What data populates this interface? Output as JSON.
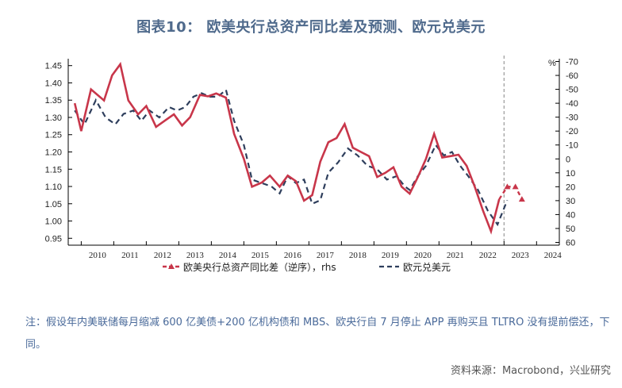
{
  "title": "图表10： 欧美央行总资产同比差及预测、欧元兑美元",
  "note": "注：假设年内美联储每月缩减 600 亿美债+200 亿机构债和 MBS、欧央行自 7 月停止 APP 再购买且 TLTRO 没有提前偿还，下同。",
  "source": "资料来源：Macrobond，兴业研究",
  "colors": {
    "red": "#c8364a",
    "blue": "#2e3e5c",
    "vline": "#999999"
  },
  "chart_data": {
    "type": "line",
    "x_ticks": [
      "2010",
      "2011",
      "2012",
      "2013",
      "2014",
      "2015",
      "2016",
      "2017",
      "2018",
      "2019",
      "2020",
      "2021",
      "2022",
      "2023",
      "2024"
    ],
    "y_left": {
      "ticks": [
        "1.45",
        "1.40",
        "1.35",
        "1.30",
        "1.25",
        "1.20",
        "1.15",
        "1.10",
        "1.05",
        "1.00",
        "0.95"
      ],
      "min": 0.93,
      "max": 1.47
    },
    "y_right": {
      "label": "%",
      "ticks": [
        "-70",
        "-60",
        "-50",
        "-40",
        "-30",
        "-20",
        "-10",
        "0",
        "10",
        "20",
        "30",
        "40",
        "50",
        "60"
      ],
      "min": -72,
      "max": 62,
      "reversed": true
    },
    "forecast_marker_year": 2023,
    "legend": [
      "欧美央行总资产同比差（逆序），rhs",
      "欧元兑美元"
    ],
    "series": [
      {
        "name": "欧美央行总资产同比差（逆序），rhs",
        "axis": "right",
        "x": [
          2009.8,
          2010.0,
          2010.3,
          2010.7,
          2010.95,
          2011.2,
          2011.45,
          2011.75,
          2012.0,
          2012.3,
          2012.6,
          2012.85,
          2013.1,
          2013.35,
          2013.65,
          2013.9,
          2014.15,
          2014.45,
          2014.7,
          2015.0,
          2015.25,
          2015.55,
          2015.8,
          2016.1,
          2016.35,
          2016.6,
          2016.85,
          2017.1,
          2017.35,
          2017.6,
          2017.85,
          2018.1,
          2018.35,
          2018.6,
          2018.85,
          2019.1,
          2019.35,
          2019.6,
          2019.85,
          2020.1,
          2020.35,
          2020.6,
          2020.85,
          2021.1,
          2021.35,
          2021.6,
          2021.85,
          2022.1,
          2022.35,
          2022.6,
          2022.85
        ],
        "y": [
          -40,
          -20,
          -50,
          -42,
          -60,
          -68,
          -42,
          -32,
          -38,
          -23,
          -28,
          -32,
          -24,
          -30,
          -46,
          -45,
          -47,
          -44,
          -18,
          0,
          20,
          17,
          12,
          20,
          12,
          16,
          30,
          26,
          2,
          -12,
          -15,
          -25,
          -8,
          -5,
          -2,
          13,
          10,
          6,
          20,
          25,
          13,
          0,
          -18,
          -1,
          -2,
          -3,
          5,
          20,
          37,
          52,
          29
        ]
      },
      {
        "name": "欧元兑美元",
        "axis": "left",
        "x": [
          2009.8,
          2010.1,
          2010.45,
          2010.75,
          2011.05,
          2011.3,
          2011.6,
          2011.85,
          2012.1,
          2012.4,
          2012.7,
          2012.95,
          2013.2,
          2013.45,
          2013.7,
          2013.95,
          2014.2,
          2014.45,
          2014.7,
          2015.0,
          2015.25,
          2015.55,
          2015.85,
          2016.1,
          2016.35,
          2016.6,
          2016.85,
          2017.1,
          2017.35,
          2017.6,
          2017.9,
          2018.2,
          2018.5,
          2018.8,
          2019.1,
          2019.4,
          2019.7,
          2019.95,
          2020.1,
          2020.35,
          2020.6,
          2020.9,
          2021.15,
          2021.4,
          2021.65,
          2021.9,
          2022.2,
          2022.5,
          2022.8,
          2023.1
        ],
        "y": [
          1.32,
          1.28,
          1.35,
          1.3,
          1.28,
          1.31,
          1.32,
          1.29,
          1.32,
          1.3,
          1.33,
          1.32,
          1.33,
          1.36,
          1.37,
          1.36,
          1.36,
          1.38,
          1.29,
          1.22,
          1.12,
          1.11,
          1.1,
          1.08,
          1.13,
          1.11,
          1.12,
          1.05,
          1.06,
          1.14,
          1.17,
          1.21,
          1.19,
          1.16,
          1.15,
          1.12,
          1.13,
          1.1,
          1.09,
          1.13,
          1.16,
          1.22,
          1.19,
          1.2,
          1.16,
          1.13,
          1.09,
          1.03,
          0.99,
          1.06
        ]
      },
      {
        "name": "预测",
        "axis": "right",
        "x": [
          2022.85,
          2023.1,
          2023.35,
          2023.55
        ],
        "y": [
          29,
          20,
          20,
          29
        ]
      }
    ]
  }
}
